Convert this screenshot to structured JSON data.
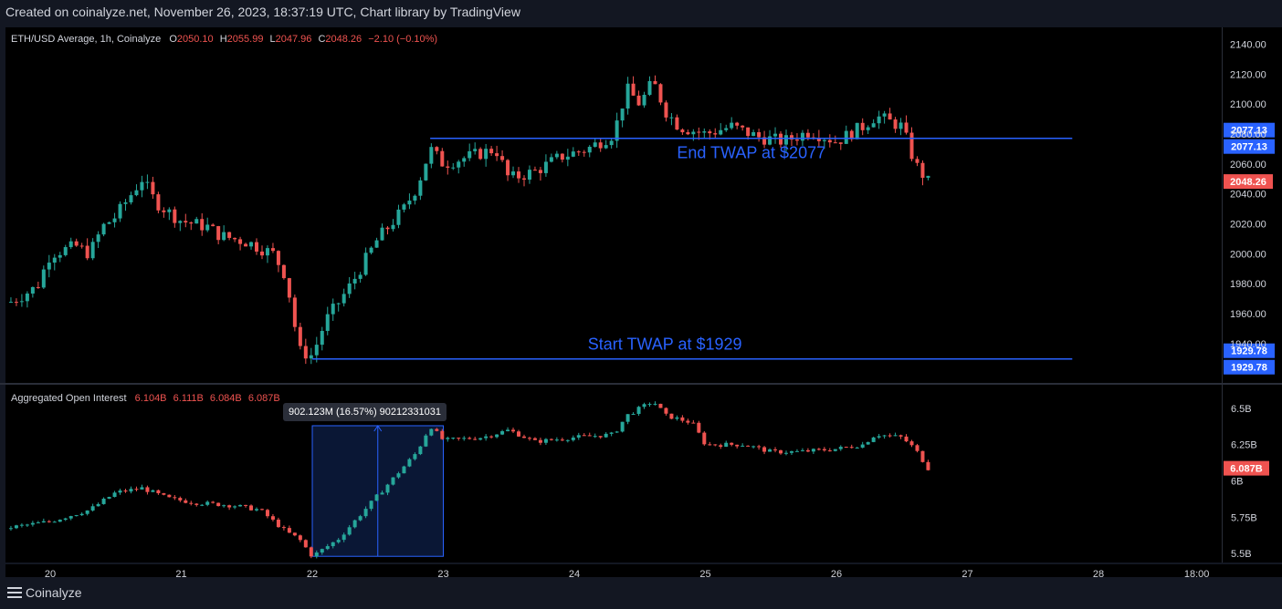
{
  "header": {
    "title": "Created on coinalyze.net, November 26, 2023, 18:37:19 UTC, Chart library by TradingView"
  },
  "footer": {
    "brand": "Coinalyze",
    "menu_icon": "hamburger-menu-icon"
  },
  "price_legend": {
    "symbol": "ETH/USD Average, 1h, Coinalyze",
    "o_label": "O",
    "o": "2050.10",
    "h_label": "H",
    "h": "2055.99",
    "l_label": "L",
    "l": "2047.96",
    "c_label": "C",
    "c": "2048.26",
    "change": "−2.10 (−0.10%)"
  },
  "oi_legend": {
    "name": "Aggregated Open Interest",
    "o": "6.104B",
    "h": "6.111B",
    "l": "6.084B",
    "c": "6.087B"
  },
  "measure_tooltip": {
    "text": "902.123M (16.57%) 90212331031"
  },
  "colors": {
    "up": "#26a69a",
    "down": "#ef5350",
    "line": "#2962ff",
    "measure_fill": "#0a1735",
    "background": "#000000",
    "text": "#d1d4dc"
  },
  "chart_data": [
    {
      "type": "candlestick",
      "title": "ETH/USD Average, 1h, Coinalyze",
      "ylim": [
        1915,
        2150
      ],
      "y_ticks": [
        "1940.00",
        "1960.00",
        "1980.00",
        "2000.00",
        "2020.00",
        "2040.00",
        "2060.00",
        "2080.00",
        "2100.00",
        "2120.00",
        "2140.00"
      ],
      "y_tick_values": [
        1940,
        1960,
        1980,
        2000,
        2020,
        2040,
        2060,
        2080,
        2100,
        2120,
        2140
      ],
      "last_price": {
        "value": 2048.26,
        "label": "2048.26"
      },
      "horizontal_lines": [
        {
          "value": 2077.13,
          "label": "2077.13",
          "annotation": "End TWAP at $2077",
          "x_start": "22.9",
          "x_end": "27.8"
        },
        {
          "value": 1929.78,
          "label": "1929.78",
          "annotation": "Start TWAP at $1929",
          "x_start": "22.0",
          "x_end": "27.8"
        }
      ],
      "close_path": [
        [
          "19.7",
          1968
        ],
        [
          "19.9",
          1978
        ],
        [
          "20.0",
          2000
        ],
        [
          "20.2",
          2005
        ],
        [
          "20.3",
          2000
        ],
        [
          "20.4",
          2018
        ],
        [
          "20.5",
          2025
        ],
        [
          "20.7",
          2050
        ],
        [
          "20.8",
          2035
        ],
        [
          "20.9",
          2028
        ],
        [
          "21.0",
          2022
        ],
        [
          "21.2",
          2018
        ],
        [
          "21.3",
          2012
        ],
        [
          "21.5",
          2008
        ],
        [
          "21.7",
          2000
        ],
        [
          "21.8",
          1985
        ],
        [
          "21.9",
          1935
        ],
        [
          "22.0",
          1932
        ],
        [
          "22.1",
          1955
        ],
        [
          "22.3",
          1980
        ],
        [
          "22.5",
          2010
        ],
        [
          "22.7",
          2030
        ],
        [
          "22.8",
          2045
        ],
        [
          "22.9",
          2070
        ],
        [
          "23.0",
          2060
        ],
        [
          "23.2",
          2065
        ],
        [
          "23.4",
          2070
        ],
        [
          "23.5",
          2050
        ],
        [
          "23.7",
          2055
        ],
        [
          "23.9",
          2065
        ],
        [
          "24.1",
          2070
        ],
        [
          "24.3",
          2080
        ],
        [
          "24.4",
          2110
        ],
        [
          "24.5",
          2100
        ],
        [
          "24.6",
          2115
        ],
        [
          "24.7",
          2095
        ],
        [
          "24.8",
          2085
        ],
        [
          "25.0",
          2080
        ],
        [
          "25.2",
          2085
        ],
        [
          "25.4",
          2078
        ],
        [
          "25.6",
          2075
        ],
        [
          "25.8",
          2082
        ],
        [
          "26.0",
          2075
        ],
        [
          "26.2",
          2085
        ],
        [
          "26.3",
          2092
        ],
        [
          "26.5",
          2085
        ],
        [
          "26.6",
          2060
        ],
        [
          "26.7",
          2048
        ]
      ]
    },
    {
      "type": "candlestick",
      "title": "Aggregated Open Interest",
      "ylim": [
        5.45,
        6.65
      ],
      "y_ticks": [
        "5.5B",
        "5.75B",
        "6B",
        "6.25B",
        "6.5B"
      ],
      "y_tick_values": [
        5.5,
        5.75,
        6.0,
        6.25,
        6.5
      ],
      "last_value": {
        "value": 6.087,
        "label": "6.087B"
      },
      "measurement": {
        "x_start": "22.0",
        "x_end": "23.0",
        "y_start": 5.48,
        "y_end": 6.38,
        "change": "902.123M",
        "percent": "16.57%",
        "raw": "90212331031"
      },
      "close_path": [
        [
          "19.7",
          5.68
        ],
        [
          "20.0",
          5.72
        ],
        [
          "20.3",
          5.8
        ],
        [
          "20.5",
          5.92
        ],
        [
          "20.7",
          5.95
        ],
        [
          "20.9",
          5.88
        ],
        [
          "21.1",
          5.85
        ],
        [
          "21.4",
          5.83
        ],
        [
          "21.6",
          5.8
        ],
        [
          "21.8",
          5.65
        ],
        [
          "21.9",
          5.6
        ],
        [
          "22.0",
          5.48
        ],
        [
          "22.2",
          5.6
        ],
        [
          "22.5",
          5.9
        ],
        [
          "22.8",
          6.2
        ],
        [
          "22.9",
          6.38
        ],
        [
          "23.0",
          6.28
        ],
        [
          "23.3",
          6.3
        ],
        [
          "23.5",
          6.35
        ],
        [
          "23.7",
          6.27
        ],
        [
          "24.0",
          6.3
        ],
        [
          "24.3",
          6.32
        ],
        [
          "24.4",
          6.45
        ],
        [
          "24.5",
          6.5
        ],
        [
          "24.6",
          6.55
        ],
        [
          "24.7",
          6.45
        ],
        [
          "24.9",
          6.4
        ],
        [
          "25.0",
          6.25
        ],
        [
          "25.3",
          6.25
        ],
        [
          "25.5",
          6.2
        ],
        [
          "25.7",
          6.2
        ],
        [
          "26.0",
          6.22
        ],
        [
          "26.2",
          6.25
        ],
        [
          "26.3",
          6.32
        ],
        [
          "26.5",
          6.3
        ],
        [
          "26.6",
          6.22
        ],
        [
          "26.7",
          6.087
        ]
      ]
    }
  ],
  "time_axis": {
    "labels": [
      "20",
      "21",
      "22",
      "23",
      "24",
      "25",
      "26",
      "27",
      "28",
      "18:00"
    ],
    "values": [
      20,
      21,
      22,
      23,
      24,
      25,
      26,
      27,
      28,
      28.75
    ]
  }
}
